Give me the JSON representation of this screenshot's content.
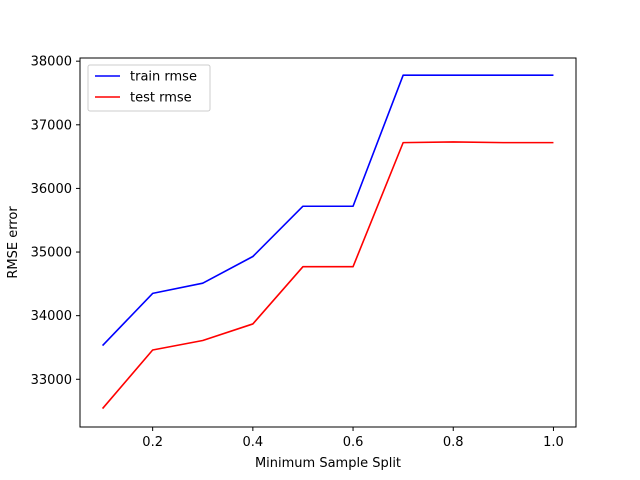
{
  "chart_data": {
    "type": "line",
    "title": "",
    "xlabel": "Minimum Sample Split",
    "ylabel": "RMSE error",
    "xlim": [
      0.055,
      1.045
    ],
    "ylim": [
      32250,
      38050
    ],
    "xticks": [
      0.2,
      0.4,
      0.6,
      0.8,
      1.0
    ],
    "xtick_labels": [
      "0.2",
      "0.4",
      "0.6",
      "0.8",
      "1.0"
    ],
    "yticks": [
      33000,
      34000,
      35000,
      36000,
      37000,
      38000
    ],
    "ytick_labels": [
      "33000",
      "34000",
      "35000",
      "36000",
      "37000",
      "38000"
    ],
    "grid": false,
    "legend_position": "upper-left",
    "x": [
      0.1,
      0.2,
      0.3,
      0.4,
      0.5,
      0.6,
      0.7,
      0.8,
      0.9,
      1.0
    ],
    "series": [
      {
        "name": "train rmse",
        "color": "#0000ff",
        "values": [
          33530,
          34350,
          34510,
          34930,
          35720,
          35720,
          37780,
          37780,
          37780,
          37780
        ]
      },
      {
        "name": "test rmse",
        "color": "#ff0000",
        "values": [
          32540,
          33460,
          33610,
          33870,
          34770,
          34770,
          36720,
          36730,
          36720,
          36720
        ]
      }
    ]
  }
}
